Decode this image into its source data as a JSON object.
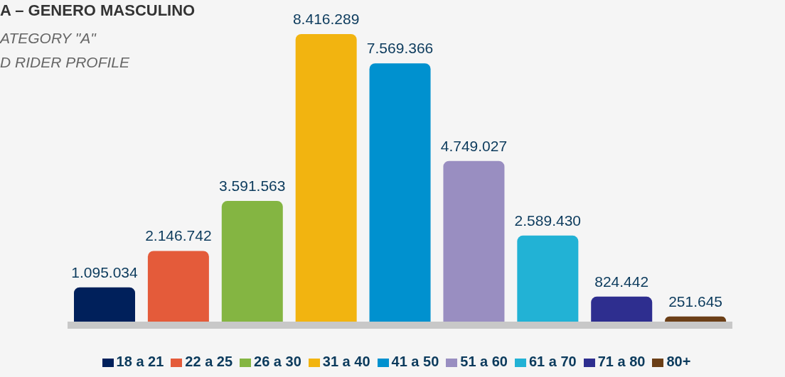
{
  "chart_data": {
    "type": "bar",
    "title": "A – GENERO MASCULINO",
    "subtitle": "ATEGORY \"A\"",
    "annotations": [
      "D RIDER PROFILE"
    ],
    "categories": [
      null,
      null,
      null,
      null,
      null,
      null,
      null,
      null,
      null
    ],
    "series": [
      {
        "name": "18 a 21",
        "color": "#00205b",
        "values": [
          1095034,
          null,
          null,
          null,
          null,
          null,
          null,
          null,
          null
        ],
        "value_labels": [
          "1.095.034",
          null,
          null,
          null,
          null,
          null,
          null,
          null,
          null
        ]
      },
      {
        "name": "22 a 25",
        "color": "#e45b3a",
        "values": [
          null,
          2146742,
          null,
          null,
          null,
          null,
          null,
          null,
          null
        ],
        "value_labels": [
          null,
          "2.146.742",
          null,
          null,
          null,
          null,
          null,
          null,
          null
        ]
      },
      {
        "name": "26 a 30",
        "color": "#84b542",
        "values": [
          null,
          null,
          3591563,
          null,
          null,
          null,
          null,
          null,
          null
        ],
        "value_labels": [
          null,
          null,
          "3.591.563",
          null,
          null,
          null,
          null,
          null,
          null
        ]
      },
      {
        "name": "31 a 40",
        "color": "#f2b410",
        "values": [
          null,
          null,
          null,
          8416289,
          null,
          null,
          null,
          null,
          null
        ],
        "value_labels": [
          null,
          null,
          null,
          "8.416.289",
          null,
          null,
          null,
          null,
          null
        ]
      },
      {
        "name": "41 a 50",
        "color": "#0091cf",
        "values": [
          null,
          null,
          null,
          null,
          7569366,
          null,
          null,
          null,
          null
        ],
        "value_labels": [
          null,
          null,
          null,
          null,
          "7.569.366",
          null,
          null,
          null,
          null
        ]
      },
      {
        "name": "51 a 60",
        "color": "#998ec1",
        "values": [
          null,
          null,
          null,
          null,
          null,
          4749027,
          null,
          null,
          null
        ],
        "value_labels": [
          null,
          null,
          null,
          null,
          null,
          "4.749.027",
          null,
          null,
          null
        ]
      },
      {
        "name": "61 a 70",
        "color": "#22b2d5",
        "values": [
          null,
          null,
          null,
          null,
          null,
          null,
          2589430,
          null,
          null
        ],
        "value_labels": [
          null,
          null,
          null,
          null,
          null,
          null,
          "2.589.430",
          null,
          null
        ]
      },
      {
        "name": "71 a 80",
        "color": "#2e2e8f",
        "values": [
          null,
          null,
          null,
          null,
          null,
          null,
          null,
          824442,
          null
        ],
        "value_labels": [
          null,
          null,
          null,
          null,
          null,
          null,
          null,
          "824.442",
          null
        ]
      },
      {
        "name": "80+",
        "color": "#6b3f17",
        "values": [
          null,
          null,
          null,
          null,
          null,
          null,
          null,
          null,
          251645
        ],
        "value_labels": [
          null,
          null,
          null,
          null,
          null,
          null,
          null,
          null,
          "251.645"
        ]
      }
    ],
    "stacked": true,
    "legend": "bottom",
    "grid": false
  }
}
